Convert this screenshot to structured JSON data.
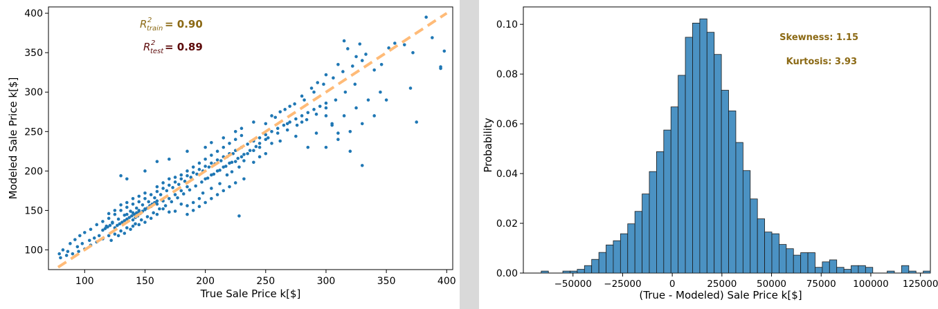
{
  "chart_data": [
    {
      "type": "scatter",
      "xlabel": "True Sale Price k[$]",
      "ylabel": "Modeled Sale Price k[$]",
      "xlim": [
        70,
        405
      ],
      "ylim": [
        75,
        408
      ],
      "xticks": [
        "100",
        "150",
        "200",
        "250",
        "300",
        "350",
        "400"
      ],
      "yticks": [
        "100",
        "150",
        "200",
        "250",
        "300",
        "350",
        "400"
      ],
      "grid": false,
      "point_color": "#1f77b4",
      "fit_line": {
        "x": [
          78,
          400
        ],
        "y": [
          78,
          400
        ],
        "color": "#ffbb78",
        "style": "dashed"
      },
      "annotations": {
        "r2_train_symbol": "R",
        "r2_train_sup": "2",
        "r2_train_sub": "train",
        "r2_train_value": "= 0.90",
        "r2_train_color": "#8b6914",
        "r2_test_symbol": "R",
        "r2_test_sup": "2",
        "r2_test_sub": "test",
        "r2_test_value": "= 0.89",
        "r2_test_color": "#5c0a0a"
      },
      "points": [
        [
          130,
          194
        ],
        [
          135,
          190
        ],
        [
          150,
          200
        ],
        [
          160,
          212
        ],
        [
          170,
          215
        ],
        [
          185,
          225
        ],
        [
          200,
          230
        ],
        [
          205,
          236
        ],
        [
          215,
          242
        ],
        [
          225,
          250
        ],
        [
          230,
          254
        ],
        [
          240,
          262
        ],
        [
          255,
          270
        ],
        [
          262,
          275
        ],
        [
          270,
          282
        ],
        [
          280,
          295
        ],
        [
          288,
          305
        ],
        [
          293,
          312
        ],
        [
          300,
          322
        ],
        [
          310,
          335
        ],
        [
          315,
          365
        ],
        [
          318,
          355
        ],
        [
          325,
          345
        ],
        [
          328,
          361
        ],
        [
          333,
          348
        ],
        [
          340,
          328
        ],
        [
          346,
          335
        ],
        [
          352,
          356
        ],
        [
          357,
          362
        ],
        [
          365,
          360
        ],
        [
          372,
          350
        ],
        [
          383,
          395
        ],
        [
          395,
          330
        ],
        [
          398,
          352
        ],
        [
          395,
          332
        ],
        [
          388,
          369
        ],
        [
          375,
          262
        ],
        [
          370,
          305
        ],
        [
          330,
          207
        ],
        [
          320,
          225
        ],
        [
          310,
          248
        ],
        [
          305,
          258
        ],
        [
          300,
          270
        ],
        [
          292,
          248
        ],
        [
          285,
          230
        ],
        [
          280,
          262
        ],
        [
          275,
          244
        ],
        [
          268,
          260
        ],
        [
          262,
          238
        ],
        [
          255,
          235
        ],
        [
          250,
          222
        ],
        [
          245,
          218
        ],
        [
          240,
          211
        ],
        [
          232,
          213
        ],
        [
          228,
          205
        ],
        [
          222,
          199
        ],
        [
          218,
          195
        ],
        [
          212,
          184
        ],
        [
          205,
          178
        ],
        [
          198,
          172
        ],
        [
          195,
          165
        ],
        [
          190,
          160
        ],
        [
          185,
          156
        ],
        [
          180,
          158
        ],
        [
          175,
          149
        ],
        [
          170,
          148
        ],
        [
          165,
          152
        ],
        [
          160,
          145
        ],
        [
          155,
          140
        ],
        [
          150,
          135
        ],
        [
          145,
          132
        ],
        [
          140,
          130
        ],
        [
          135,
          128
        ],
        [
          130,
          124
        ],
        [
          125,
          120
        ],
        [
          120,
          118
        ],
        [
          115,
          114
        ],
        [
          110,
          110
        ],
        [
          105,
          106
        ],
        [
          100,
          101
        ],
        [
          95,
          98
        ],
        [
          90,
          95
        ],
        [
          85,
          93
        ],
        [
          80,
          90
        ],
        [
          79,
          95
        ],
        [
          82,
          100
        ],
        [
          88,
          108
        ],
        [
          92,
          113
        ],
        [
          96,
          118
        ],
        [
          100,
          122
        ],
        [
          105,
          126
        ],
        [
          110,
          132
        ],
        [
          115,
          136
        ],
        [
          120,
          140
        ],
        [
          125,
          145
        ],
        [
          130,
          150
        ],
        [
          135,
          154
        ],
        [
          140,
          158
        ],
        [
          145,
          161
        ],
        [
          150,
          165
        ],
        [
          155,
          170
        ],
        [
          160,
          174
        ],
        [
          165,
          178
        ],
        [
          170,
          182
        ],
        [
          175,
          186
        ],
        [
          180,
          190
        ],
        [
          185,
          194
        ],
        [
          190,
          198
        ],
        [
          195,
          202
        ],
        [
          200,
          206
        ],
        [
          205,
          210
        ],
        [
          210,
          214
        ],
        [
          215,
          218
        ],
        [
          220,
          222
        ],
        [
          225,
          226
        ],
        [
          230,
          230
        ],
        [
          235,
          234
        ],
        [
          240,
          238
        ],
        [
          245,
          242
        ],
        [
          250,
          246
        ],
        [
          255,
          250
        ],
        [
          260,
          254
        ],
        [
          265,
          258
        ],
        [
          270,
          262
        ],
        [
          275,
          266
        ],
        [
          280,
          270
        ],
        [
          285,
          274
        ],
        [
          290,
          278
        ],
        [
          295,
          282
        ],
        [
          300,
          286
        ],
        [
          122,
          112
        ],
        [
          128,
          118
        ],
        [
          133,
          121
        ],
        [
          138,
          126
        ],
        [
          142,
          133
        ],
        [
          147,
          138
        ],
        [
          152,
          142
        ],
        [
          157,
          147
        ],
        [
          162,
          152
        ],
        [
          167,
          156
        ],
        [
          172,
          161
        ],
        [
          177,
          166
        ],
        [
          182,
          171
        ],
        [
          187,
          176
        ],
        [
          192,
          181
        ],
        [
          197,
          186
        ],
        [
          202,
          191
        ],
        [
          207,
          196
        ],
        [
          212,
          201
        ],
        [
          217,
          206
        ],
        [
          222,
          211
        ],
        [
          227,
          216
        ],
        [
          232,
          221
        ],
        [
          237,
          226
        ],
        [
          242,
          231
        ],
        [
          118,
          130
        ],
        [
          123,
          135
        ],
        [
          128,
          139
        ],
        [
          133,
          144
        ],
        [
          138,
          149
        ],
        [
          143,
          153
        ],
        [
          148,
          157
        ],
        [
          153,
          161
        ],
        [
          158,
          166
        ],
        [
          163,
          170
        ],
        [
          168,
          175
        ],
        [
          173,
          179
        ],
        [
          178,
          183
        ],
        [
          183,
          187
        ],
        [
          188,
          192
        ],
        [
          193,
          196
        ],
        [
          198,
          200
        ],
        [
          203,
          205
        ],
        [
          208,
          209
        ],
        [
          213,
          213
        ],
        [
          218,
          218
        ],
        [
          223,
          222
        ],
        [
          135,
          145
        ],
        [
          140,
          147
        ],
        [
          145,
          150
        ],
        [
          150,
          152
        ],
        [
          155,
          155
        ],
        [
          160,
          158
        ],
        [
          165,
          162
        ],
        [
          170,
          165
        ],
        [
          175,
          170
        ],
        [
          180,
          175
        ],
        [
          185,
          180
        ],
        [
          140,
          138
        ],
        [
          142,
          141
        ],
        [
          144,
          143
        ],
        [
          146,
          146
        ],
        [
          148,
          149
        ],
        [
          150,
          151
        ],
        [
          152,
          153
        ],
        [
          154,
          156
        ],
        [
          156,
          158
        ],
        [
          158,
          160
        ],
        [
          160,
          162
        ],
        [
          125,
          128
        ],
        [
          127,
          131
        ],
        [
          129,
          133
        ],
        [
          131,
          135
        ],
        [
          133,
          137
        ],
        [
          135,
          139
        ],
        [
          137,
          141
        ],
        [
          139,
          143
        ],
        [
          141,
          145
        ],
        [
          143,
          147
        ],
        [
          145,
          148
        ],
        [
          115,
          125
        ],
        [
          117,
          127
        ],
        [
          119,
          129
        ],
        [
          121,
          131
        ],
        [
          123,
          134
        ],
        [
          112,
          118
        ],
        [
          108,
          115
        ],
        [
          104,
          112
        ],
        [
          98,
          108
        ],
        [
          94,
          104
        ],
        [
          86,
          98
        ],
        [
          250,
          260
        ],
        [
          258,
          268
        ],
        [
          266,
          278
        ],
        [
          274,
          285
        ],
        [
          282,
          290
        ],
        [
          290,
          300
        ],
        [
          298,
          310
        ],
        [
          306,
          318
        ],
        [
          314,
          326
        ],
        [
          322,
          333
        ],
        [
          330,
          340
        ],
        [
          245,
          230
        ],
        [
          252,
          242
        ],
        [
          260,
          248
        ],
        [
          268,
          252
        ],
        [
          276,
          258
        ],
        [
          284,
          265
        ],
        [
          292,
          272
        ],
        [
          300,
          280
        ],
        [
          308,
          290
        ],
        [
          316,
          300
        ],
        [
          324,
          310
        ],
        [
          200,
          190
        ],
        [
          205,
          195
        ],
        [
          210,
          200
        ],
        [
          215,
          205
        ],
        [
          220,
          210
        ],
        [
          225,
          212
        ],
        [
          230,
          218
        ],
        [
          235,
          222
        ],
        [
          240,
          226
        ],
        [
          245,
          235
        ],
        [
          250,
          240
        ],
        [
          180,
          195
        ],
        [
          185,
          200
        ],
        [
          190,
          205
        ],
        [
          195,
          210
        ],
        [
          200,
          215
        ],
        [
          205,
          220
        ],
        [
          210,
          225
        ],
        [
          215,
          230
        ],
        [
          220,
          235
        ],
        [
          225,
          240
        ],
        [
          230,
          245
        ],
        [
          160,
          180
        ],
        [
          165,
          185
        ],
        [
          170,
          190
        ],
        [
          175,
          192
        ],
        [
          150,
          172
        ],
        [
          145,
          168
        ],
        [
          140,
          165
        ],
        [
          135,
          160
        ],
        [
          130,
          157
        ],
        [
          125,
          150
        ],
        [
          120,
          146
        ],
        [
          185,
          145
        ],
        [
          190,
          150
        ],
        [
          195,
          155
        ],
        [
          200,
          160
        ],
        [
          205,
          165
        ],
        [
          210,
          170
        ],
        [
          215,
          175
        ],
        [
          220,
          180
        ],
        [
          225,
          185
        ],
        [
          228,
          143
        ],
        [
          232,
          190
        ],
        [
          300,
          230
        ],
        [
          310,
          240
        ],
        [
          320,
          250
        ],
        [
          330,
          260
        ],
        [
          340,
          270
        ],
        [
          350,
          290
        ],
        [
          345,
          300
        ],
        [
          335,
          290
        ],
        [
          325,
          280
        ],
        [
          315,
          270
        ],
        [
          305,
          260
        ]
      ]
    },
    {
      "type": "bar",
      "subtype": "histogram",
      "xlabel": "(True - Modeled) Sale Price k[$]",
      "ylabel": "Probability",
      "xlim": [
        -75000,
        130000
      ],
      "ylim": [
        0,
        0.107
      ],
      "xticks": [
        "−50000",
        "−25000",
        "0",
        "25000",
        "50000",
        "75000",
        "100000",
        "125000"
      ],
      "yticks": [
        "0.00",
        "0.02",
        "0.04",
        "0.06",
        "0.08",
        "0.10"
      ],
      "grid": false,
      "bar_color": "#4b92c3",
      "bar_edge": "#1a1a1a",
      "bin_start": -66000,
      "bin_width": 3630,
      "values": [
        0.0008,
        0,
        0,
        0.0008,
        0.0008,
        0.0015,
        0.003,
        0.0055,
        0.0083,
        0.0113,
        0.013,
        0.0158,
        0.0198,
        0.0248,
        0.0318,
        0.0408,
        0.0488,
        0.0575,
        0.0668,
        0.0795,
        0.0948,
        0.1005,
        0.1022,
        0.0968,
        0.0879,
        0.0735,
        0.0652,
        0.0525,
        0.0412,
        0.0298,
        0.0218,
        0.0165,
        0.0158,
        0.0115,
        0.0098,
        0.0072,
        0.0082,
        0.0082,
        0.0023,
        0.0045,
        0.0053,
        0.0023,
        0.0015,
        0.003,
        0.003,
        0.0023,
        0,
        0,
        0.0008,
        0,
        0.003,
        0.0008,
        0,
        0.0008,
        0,
        0,
        0,
        0,
        0,
        0,
        0,
        0,
        0,
        0.0008,
        0,
        0,
        0,
        0.0008
      ],
      "annotations": {
        "skewness": "Skewness: 1.15",
        "kurtosis": "Kurtosis: 3.93",
        "color": "#8b6914"
      }
    }
  ]
}
